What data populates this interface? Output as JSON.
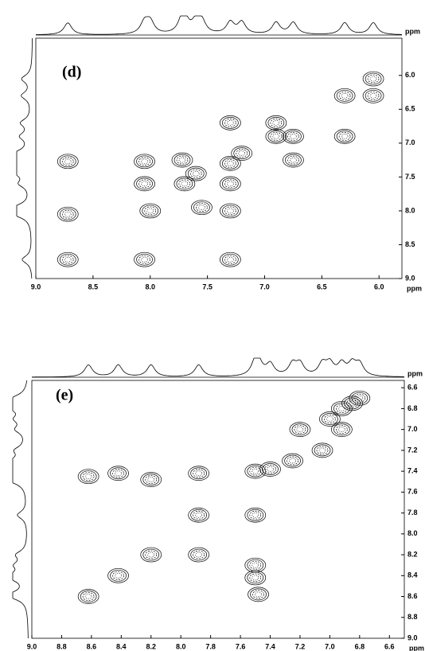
{
  "chart_data": [
    {
      "type": "contour",
      "panel_label": "(d)",
      "x_label": "ppm",
      "y_label": "ppm",
      "xlim": [
        9.0,
        5.8
      ],
      "ylim": [
        5.45,
        9.0
      ],
      "xticks": [
        {
          "value": 9.0,
          "label": "9.0"
        },
        {
          "value": 8.5,
          "label": "8.5"
        },
        {
          "value": 8.0,
          "label": "8.0"
        },
        {
          "value": 7.5,
          "label": "7.5"
        },
        {
          "value": 7.0,
          "label": "7.0"
        },
        {
          "value": 6.5,
          "label": "6.5"
        },
        {
          "value": 6.0,
          "label": "6.0"
        }
      ],
      "yticks": [
        {
          "value": 6.0,
          "label": "6.0"
        },
        {
          "value": 6.5,
          "label": "6.5"
        },
        {
          "value": 7.0,
          "label": "7.0"
        },
        {
          "value": 7.5,
          "label": "7.5"
        },
        {
          "value": 8.0,
          "label": "8.0"
        },
        {
          "value": 8.5,
          "label": "8.5"
        },
        {
          "value": 9.0,
          "label": "9.0"
        }
      ],
      "x": [
        8.72,
        8.72,
        8.72,
        8.05,
        7.3,
        8.05,
        8.05,
        8.0,
        7.72,
        7.7,
        7.6,
        7.55,
        7.3,
        7.3,
        7.3,
        7.2,
        7.3,
        6.9,
        6.9,
        6.75,
        6.75,
        6.3,
        6.3,
        6.05,
        6.05
      ],
      "values": [
        7.27,
        8.05,
        8.72,
        8.72,
        8.72,
        7.27,
        7.6,
        8.0,
        7.25,
        7.6,
        7.45,
        7.95,
        7.3,
        7.6,
        8.0,
        7.15,
        6.7,
        6.7,
        6.9,
        6.9,
        7.25,
        6.3,
        6.9,
        6.05,
        6.3
      ]
    },
    {
      "type": "contour",
      "panel_label": "(e)",
      "x_label": "ppm",
      "y_label": "ppm",
      "xlim": [
        9.0,
        6.5
      ],
      "ylim": [
        6.53,
        9.0
      ],
      "xticks": [
        {
          "value": 9.0,
          "label": "9.0"
        },
        {
          "value": 8.8,
          "label": "8.8"
        },
        {
          "value": 8.6,
          "label": "8.6"
        },
        {
          "value": 8.4,
          "label": "8.4"
        },
        {
          "value": 8.2,
          "label": "8.2"
        },
        {
          "value": 8.0,
          "label": "8.0"
        },
        {
          "value": 7.8,
          "label": "7.8"
        },
        {
          "value": 7.6,
          "label": "7.6"
        },
        {
          "value": 7.4,
          "label": "7.4"
        },
        {
          "value": 7.2,
          "label": "7.2"
        },
        {
          "value": 7.0,
          "label": "7.0"
        },
        {
          "value": 6.8,
          "label": "6.8"
        },
        {
          "value": 6.6,
          "label": "6.6"
        }
      ],
      "yticks": [
        {
          "value": 6.6,
          "label": "6.6"
        },
        {
          "value": 6.8,
          "label": "6.8"
        },
        {
          "value": 7.0,
          "label": "7.0"
        },
        {
          "value": 7.2,
          "label": "7.2"
        },
        {
          "value": 7.4,
          "label": "7.4"
        },
        {
          "value": 7.6,
          "label": "7.6"
        },
        {
          "value": 7.8,
          "label": "7.8"
        },
        {
          "value": 8.0,
          "label": "8.0"
        },
        {
          "value": 8.2,
          "label": "8.2"
        },
        {
          "value": 8.4,
          "label": "8.4"
        },
        {
          "value": 8.6,
          "label": "8.6"
        },
        {
          "value": 8.8,
          "label": "8.8"
        },
        {
          "value": 9.0,
          "label": "9.0"
        }
      ],
      "x": [
        8.62,
        8.42,
        8.2,
        7.88,
        7.5,
        7.4,
        8.62,
        8.42,
        8.2,
        7.88,
        7.88,
        7.5,
        7.5,
        7.5,
        7.48,
        7.25,
        7.05,
        7.0,
        6.92,
        6.85,
        6.8,
        6.92,
        7.2
      ],
      "values": [
        8.6,
        8.4,
        8.2,
        7.42,
        7.4,
        7.38,
        7.45,
        7.42,
        7.48,
        7.82,
        8.2,
        7.82,
        8.3,
        8.42,
        8.58,
        7.3,
        7.2,
        6.9,
        6.8,
        6.75,
        6.7,
        7.0,
        7.0
      ]
    }
  ]
}
